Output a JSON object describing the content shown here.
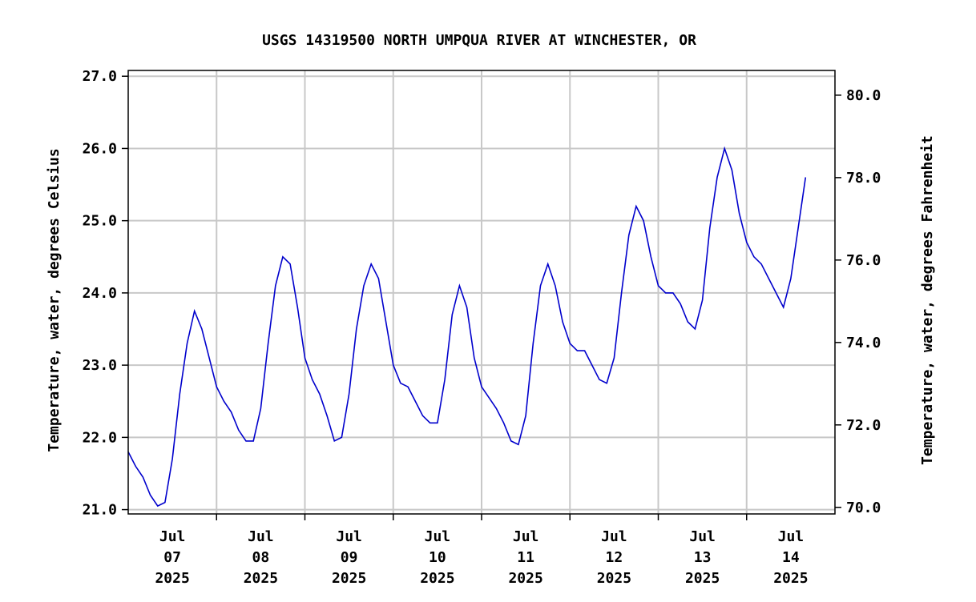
{
  "chart_data": {
    "type": "line",
    "title": "USGS 14319500 NORTH UMPQUA RIVER AT WINCHESTER, OR",
    "ylabel": "Temperature, water, degrees Celsius",
    "y2label": "Temperature, water, degrees Fahrenheit",
    "xlim": [
      "2025-07-07T00:00",
      "2025-07-15T00:00"
    ],
    "xticks": [
      {
        "value": "2025-07-07T12:00",
        "label": "Jul 07 2025"
      },
      {
        "value": "2025-07-08T12:00",
        "label": "Jul 08 2025"
      },
      {
        "value": "2025-07-09T12:00",
        "label": "Jul 09 2025"
      },
      {
        "value": "2025-07-10T12:00",
        "label": "Jul 10 2025"
      },
      {
        "value": "2025-07-11T12:00",
        "label": "Jul 11 2025"
      },
      {
        "value": "2025-07-12T12:00",
        "label": "Jul 12 2025"
      },
      {
        "value": "2025-07-13T12:00",
        "label": "Jul 13 2025"
      },
      {
        "value": "2025-07-14T12:00",
        "label": "Jul 14 2025"
      }
    ],
    "xgrid": [
      "2025-07-08T00:00",
      "2025-07-09T00:00",
      "2025-07-10T00:00",
      "2025-07-11T00:00",
      "2025-07-12T00:00",
      "2025-07-13T00:00",
      "2025-07-14T00:00"
    ],
    "ylim": [
      20.94,
      27.08
    ],
    "yticks": [
      {
        "value": 21,
        "label": "21.0"
      },
      {
        "value": 22,
        "label": "22.0"
      },
      {
        "value": 23,
        "label": "23.0"
      },
      {
        "value": 24,
        "label": "24.0"
      },
      {
        "value": 25,
        "label": "25.0"
      },
      {
        "value": 26,
        "label": "26.0"
      },
      {
        "value": 27,
        "label": "27.0"
      }
    ],
    "y2lim": [
      69.84,
      80.6
    ],
    "y2ticks": [
      {
        "value": 70,
        "label": "70.0"
      },
      {
        "value": 72,
        "label": "72.0"
      },
      {
        "value": 74,
        "label": "74.0"
      },
      {
        "value": 76,
        "label": "76.0"
      },
      {
        "value": 78,
        "label": "78.0"
      },
      {
        "value": 80,
        "label": "80.0"
      }
    ],
    "grid": true,
    "x": [
      "2025-07-07T00:00",
      "2025-07-07T02:00",
      "2025-07-07T04:00",
      "2025-07-07T06:00",
      "2025-07-07T08:00",
      "2025-07-07T10:00",
      "2025-07-07T12:00",
      "2025-07-07T14:00",
      "2025-07-07T16:00",
      "2025-07-07T18:00",
      "2025-07-07T20:00",
      "2025-07-07T22:00",
      "2025-07-08T00:00",
      "2025-07-08T02:00",
      "2025-07-08T04:00",
      "2025-07-08T06:00",
      "2025-07-08T08:00",
      "2025-07-08T10:00",
      "2025-07-08T12:00",
      "2025-07-08T14:00",
      "2025-07-08T16:00",
      "2025-07-08T18:00",
      "2025-07-08T20:00",
      "2025-07-08T22:00",
      "2025-07-09T00:00",
      "2025-07-09T02:00",
      "2025-07-09T04:00",
      "2025-07-09T06:00",
      "2025-07-09T08:00",
      "2025-07-09T10:00",
      "2025-07-09T12:00",
      "2025-07-09T14:00",
      "2025-07-09T16:00",
      "2025-07-09T18:00",
      "2025-07-09T20:00",
      "2025-07-09T22:00",
      "2025-07-10T00:00",
      "2025-07-10T02:00",
      "2025-07-10T04:00",
      "2025-07-10T06:00",
      "2025-07-10T08:00",
      "2025-07-10T10:00",
      "2025-07-10T12:00",
      "2025-07-10T14:00",
      "2025-07-10T16:00",
      "2025-07-10T18:00",
      "2025-07-10T20:00",
      "2025-07-10T22:00",
      "2025-07-11T00:00",
      "2025-07-11T02:00",
      "2025-07-11T04:00",
      "2025-07-11T06:00",
      "2025-07-11T08:00",
      "2025-07-11T10:00",
      "2025-07-11T12:00",
      "2025-07-11T14:00",
      "2025-07-11T16:00",
      "2025-07-11T18:00",
      "2025-07-11T20:00",
      "2025-07-11T22:00",
      "2025-07-12T00:00",
      "2025-07-12T02:00",
      "2025-07-12T04:00",
      "2025-07-12T06:00",
      "2025-07-12T08:00",
      "2025-07-12T10:00",
      "2025-07-12T12:00",
      "2025-07-12T14:00",
      "2025-07-12T16:00",
      "2025-07-12T18:00",
      "2025-07-12T20:00",
      "2025-07-12T22:00",
      "2025-07-13T00:00",
      "2025-07-13T02:00",
      "2025-07-13T04:00",
      "2025-07-13T06:00",
      "2025-07-13T08:00",
      "2025-07-13T10:00",
      "2025-07-13T12:00",
      "2025-07-13T14:00",
      "2025-07-13T16:00",
      "2025-07-13T18:00",
      "2025-07-13T20:00",
      "2025-07-13T22:00",
      "2025-07-14T00:00",
      "2025-07-14T02:00",
      "2025-07-14T04:00",
      "2025-07-14T06:00",
      "2025-07-14T08:00",
      "2025-07-14T10:00",
      "2025-07-14T12:00",
      "2025-07-14T14:00",
      "2025-07-14T16:00"
    ],
    "series": [
      {
        "color": "#0000cc",
        "values": [
          21.8,
          21.6,
          21.45,
          21.2,
          21.05,
          21.1,
          21.7,
          22.6,
          23.3,
          23.75,
          23.5,
          23.1,
          22.7,
          22.5,
          22.35,
          22.1,
          21.95,
          21.95,
          22.4,
          23.3,
          24.1,
          24.5,
          24.4,
          23.8,
          23.1,
          22.8,
          22.6,
          22.3,
          21.95,
          22.0,
          22.6,
          23.5,
          24.1,
          24.4,
          24.2,
          23.6,
          23.0,
          22.75,
          22.7,
          22.5,
          22.3,
          22.2,
          22.2,
          22.8,
          23.7,
          24.1,
          23.8,
          23.1,
          22.7,
          22.55,
          22.4,
          22.2,
          21.95,
          21.9,
          22.3,
          23.3,
          24.1,
          24.4,
          24.1,
          23.6,
          23.3,
          23.2,
          23.2,
          23.0,
          22.8,
          22.75,
          23.1,
          24.0,
          24.8,
          25.2,
          25.0,
          24.5,
          24.1,
          24.0,
          24.0,
          23.85,
          23.6,
          23.5,
          23.9,
          24.9,
          25.6,
          26.0,
          25.7,
          25.1,
          24.7,
          24.5,
          24.4,
          24.2,
          24.0,
          23.8,
          24.2,
          24.9,
          25.6
        ]
      }
    ]
  }
}
